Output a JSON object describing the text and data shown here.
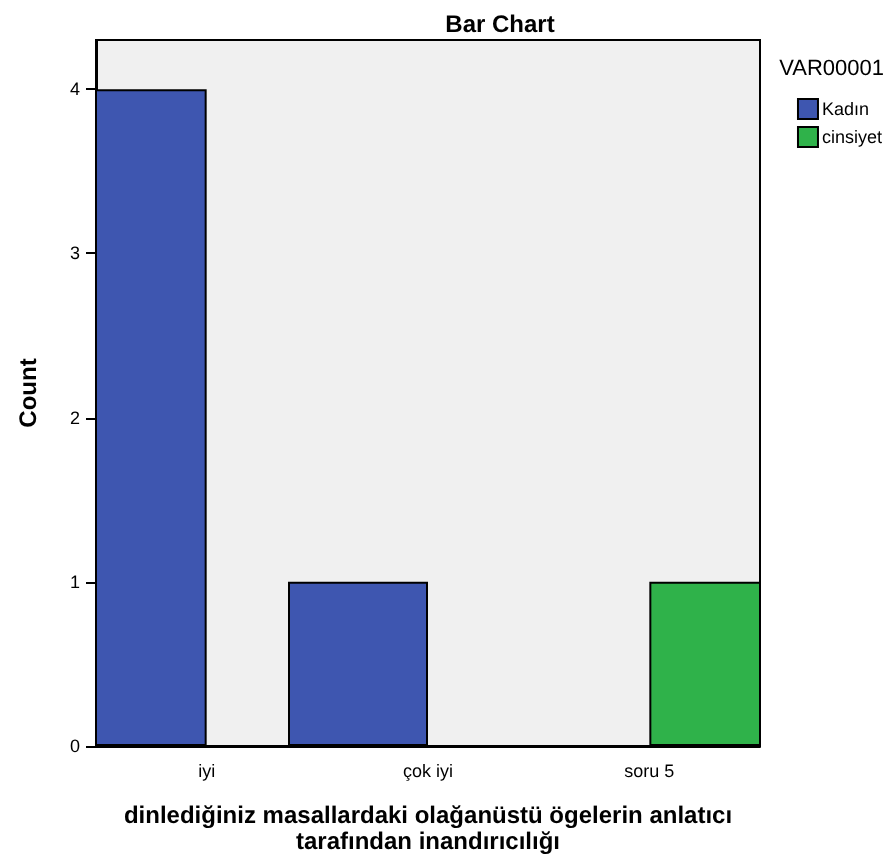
{
  "chart_data": {
    "type": "bar",
    "title": "Bar Chart",
    "xlabel": "dinlediğiniz masallardaki olağanüstü ögelerin anlatıcı\ntarafından inandırıcılığı",
    "ylabel": "Count",
    "legend_title": "VAR00001",
    "categories": [
      "iyi",
      "çok iyi",
      "soru 5"
    ],
    "series": [
      {
        "name": "Kadın",
        "color": "#3e56b0",
        "values": [
          4,
          1,
          null
        ]
      },
      {
        "name": "cinsiyet",
        "color": "#2fb24a",
        "values": [
          null,
          null,
          1
        ]
      }
    ],
    "ylim": [
      0,
      4.3
    ],
    "yticks": [
      0,
      1,
      2,
      3,
      4
    ],
    "grid": false,
    "legend": "top right"
  }
}
